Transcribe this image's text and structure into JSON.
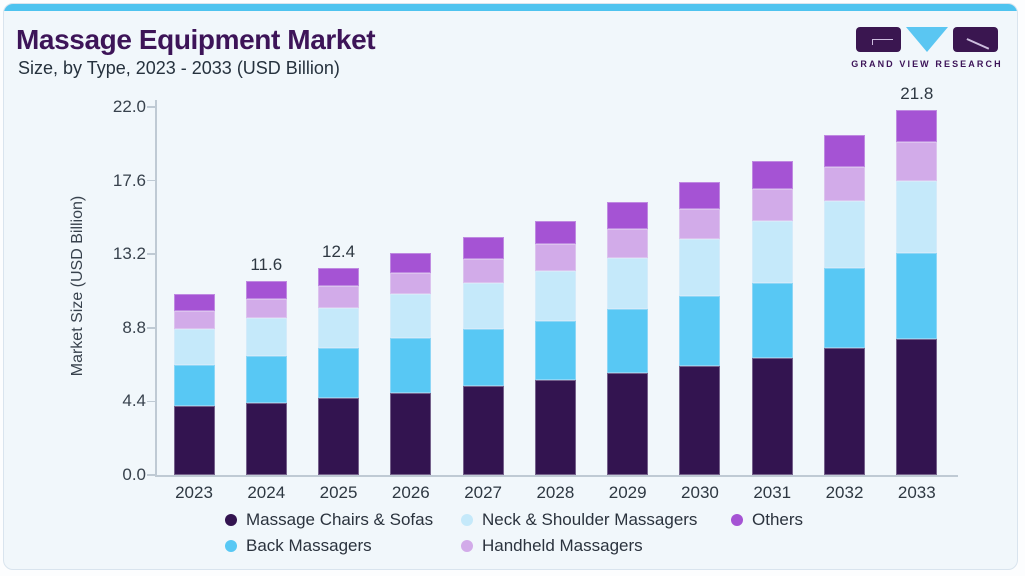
{
  "header": {
    "title": "Massage Equipment Market",
    "subtitle": "Size, by Type, 2023 - 2033 (USD Billion)"
  },
  "logo": {
    "text": "GRAND VIEW RESEARCH"
  },
  "colors": {
    "accent_strip": "#4ec3ef",
    "card_background": "#f1f7fb",
    "card_border": "#d9e4ee",
    "title_purple": "#3d1458",
    "axis_text": "#38424d",
    "axis_line": "#bfcad4"
  },
  "chart_data": {
    "type": "bar",
    "stacked": true,
    "title": "Massage Equipment Market Size, by Type, 2023 - 2033 (USD Billion)",
    "xlabel": "",
    "ylabel": "Market Size (USD Billion)",
    "ylim": [
      0,
      22
    ],
    "yticks": [
      "22.0",
      "17.6",
      "13.2",
      "8.8",
      "4.4",
      "0.0"
    ],
    "grid": false,
    "legend_position": "bottom",
    "categories": [
      "2023",
      "2024",
      "2025",
      "2026",
      "2027",
      "2028",
      "2029",
      "2030",
      "2031",
      "2032",
      "2033"
    ],
    "series": [
      {
        "name": "Massage Chairs & Sofas",
        "color": "#331450",
        "values": [
          4.1,
          4.3,
          4.6,
          4.9,
          5.3,
          5.7,
          6.1,
          6.5,
          7.0,
          7.6,
          8.1
        ]
      },
      {
        "name": "Back Massagers",
        "color": "#58c8f4",
        "values": [
          2.5,
          2.8,
          3.0,
          3.3,
          3.4,
          3.5,
          3.8,
          4.2,
          4.5,
          4.8,
          5.2
        ]
      },
      {
        "name": "Neck & Shoulder Massagers",
        "color": "#c5e9fa",
        "values": [
          2.1,
          2.3,
          2.4,
          2.6,
          2.8,
          3.0,
          3.1,
          3.4,
          3.7,
          4.0,
          4.3
        ]
      },
      {
        "name": "Handheld Massagers",
        "color": "#d2abe9",
        "values": [
          1.1,
          1.1,
          1.3,
          1.3,
          1.4,
          1.6,
          1.7,
          1.8,
          1.9,
          2.0,
          2.3
        ]
      },
      {
        "name": "Others",
        "color": "#a553d4",
        "values": [
          1.0,
          1.1,
          1.1,
          1.2,
          1.3,
          1.4,
          1.6,
          1.6,
          1.7,
          1.9,
          1.9
        ]
      }
    ],
    "totals": [
      10.8,
      11.6,
      12.4,
      13.3,
      14.2,
      15.2,
      16.3,
      17.5,
      18.8,
      20.3,
      21.8
    ],
    "bar_total_labels": {
      "2024": "11.6",
      "2025": "12.4",
      "2033": "21.8"
    },
    "legend_order": [
      "Massage Chairs & Sofas",
      "Neck & Shoulder Massagers",
      "Others",
      "Back Massagers",
      "Handheld Massagers"
    ]
  }
}
